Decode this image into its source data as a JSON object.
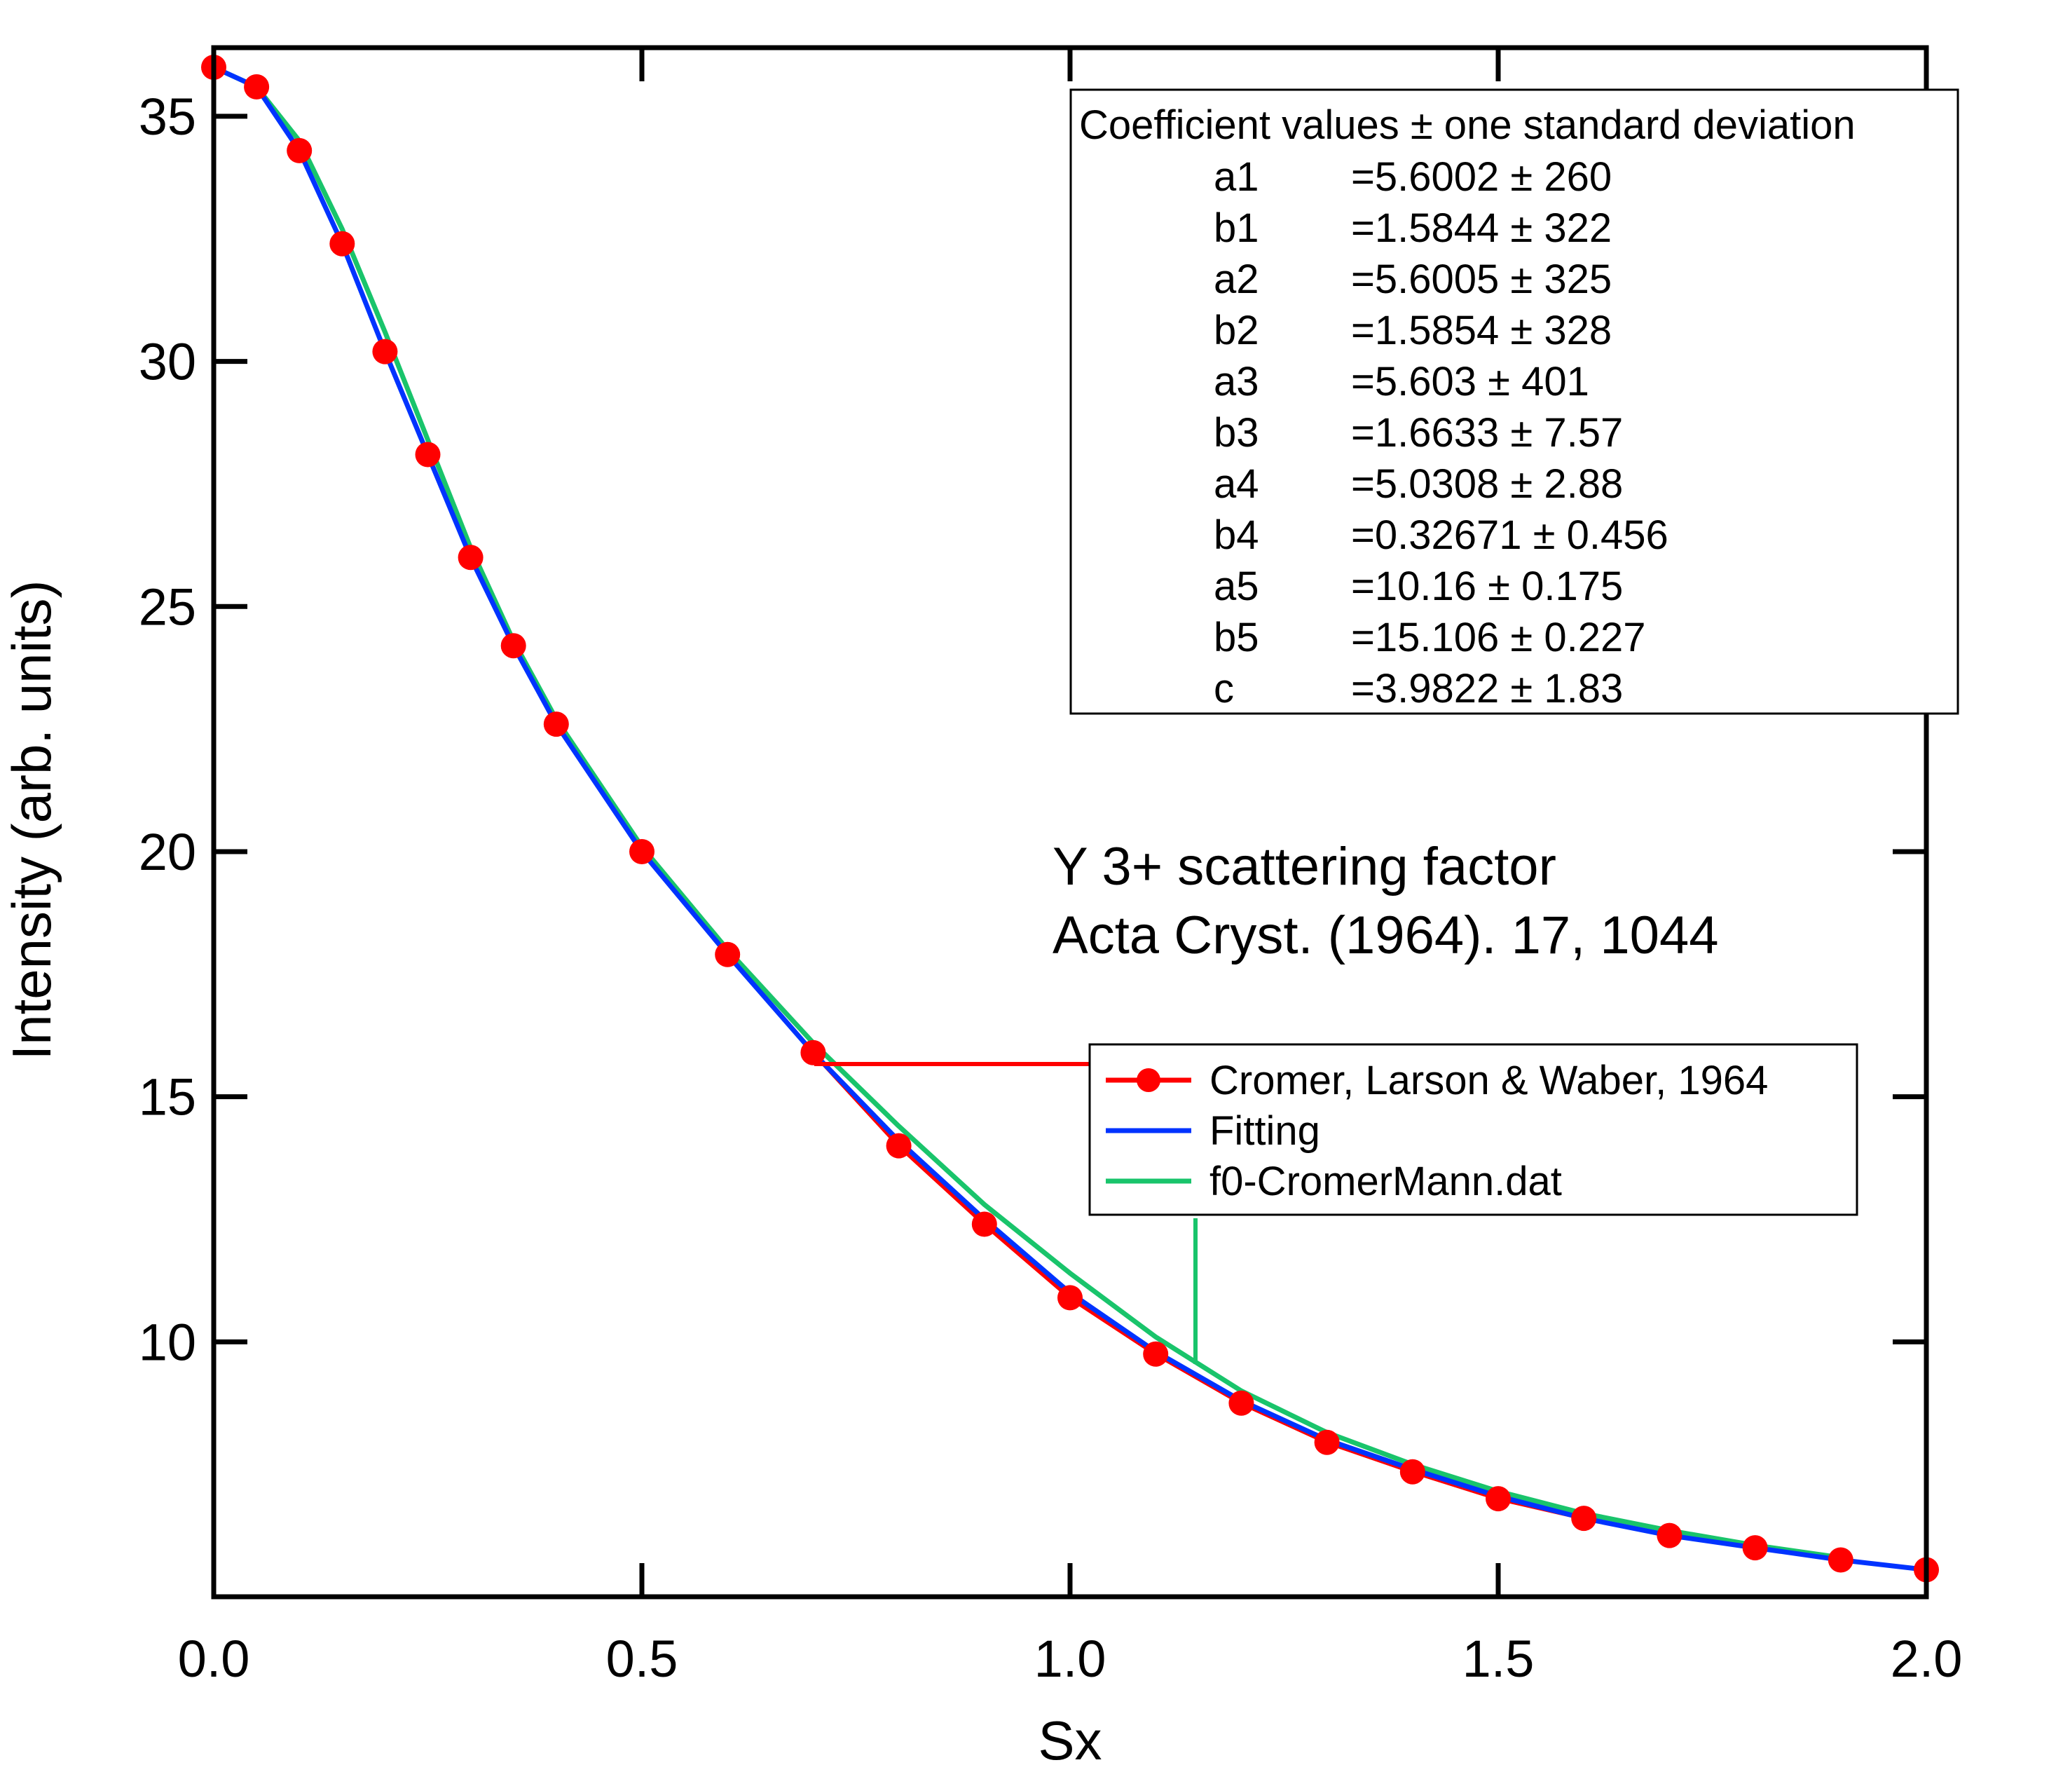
{
  "chart_data": {
    "type": "line",
    "xlabel": "Sx",
    "ylabel": "Intensity (arb. units)",
    "xlim": [
      0.0,
      2.0
    ],
    "ylim": [
      4.8,
      36.4
    ],
    "x_ticks": [
      "0.0",
      "0.5",
      "1.0",
      "1.5",
      "2.0"
    ],
    "y_ticks": [
      "10",
      "15",
      "20",
      "25",
      "30",
      "35"
    ],
    "grid": false,
    "legend_placement": "lower-right",
    "series": [
      {
        "name": "Cromer, Larson & Waber, 1964",
        "color": "#ff0000",
        "marker": "circle",
        "x": [
          0.0,
          0.05,
          0.1,
          0.15,
          0.2,
          0.25,
          0.3,
          0.35,
          0.4,
          0.5,
          0.6,
          0.7,
          0.8,
          0.9,
          1.0,
          1.1,
          1.2,
          1.3,
          1.4,
          1.5,
          1.6,
          1.7,
          1.8,
          1.9,
          2.0
        ],
        "y": [
          36.0,
          35.6,
          34.3,
          32.4,
          30.2,
          28.1,
          26.0,
          24.2,
          22.6,
          20.0,
          17.9,
          15.9,
          14.0,
          12.4,
          10.9,
          9.75,
          8.75,
          7.95,
          7.35,
          6.8,
          6.4,
          6.05,
          5.8,
          5.55,
          5.35
        ]
      },
      {
        "name": "Fitting",
        "color": "#0033ff",
        "x": [
          0.0,
          0.05,
          0.1,
          0.15,
          0.2,
          0.25,
          0.3,
          0.35,
          0.4,
          0.5,
          0.6,
          0.7,
          0.8,
          0.9,
          1.0,
          1.1,
          1.2,
          1.3,
          1.4,
          1.5,
          1.6,
          1.7,
          1.8,
          1.9,
          2.0
        ],
        "y": [
          36.0,
          35.6,
          34.3,
          32.4,
          30.2,
          28.1,
          26.0,
          24.2,
          22.6,
          20.0,
          17.9,
          15.9,
          14.1,
          12.5,
          11.0,
          9.8,
          8.8,
          8.0,
          7.4,
          6.85,
          6.4,
          6.05,
          5.8,
          5.55,
          5.35
        ]
      },
      {
        "name": "f0-CromerMann.dat",
        "color": "#19c46b",
        "x": [
          0.0,
          0.05,
          0.1,
          0.15,
          0.2,
          0.25,
          0.3,
          0.35,
          0.4,
          0.5,
          0.6,
          0.7,
          0.8,
          0.9,
          1.0,
          1.1,
          1.2,
          1.3,
          1.4,
          1.5,
          1.6,
          1.7,
          1.8,
          1.9
        ],
        "y": [
          36.0,
          35.6,
          34.5,
          32.7,
          30.6,
          28.4,
          26.2,
          24.3,
          22.7,
          20.1,
          18.0,
          16.1,
          14.4,
          12.8,
          11.4,
          10.1,
          9.0,
          8.15,
          7.5,
          6.95,
          6.5,
          6.15,
          5.85,
          5.6
        ]
      }
    ],
    "coefficient_box": {
      "title": "Coefficient values ± one standard deviation",
      "rows": [
        {
          "name": "a1",
          "value": "=5.6002 ± 260"
        },
        {
          "name": "b1",
          "value": "=1.5844 ± 322"
        },
        {
          "name": "a2",
          "value": "=5.6005 ± 325"
        },
        {
          "name": "b2",
          "value": "=1.5854 ± 328"
        },
        {
          "name": "a3",
          "value": "=5.603 ± 401"
        },
        {
          "name": "b3",
          "value": "=1.6633 ± 7.57"
        },
        {
          "name": "a4",
          "value": "=5.0308 ± 2.88"
        },
        {
          "name": "b4",
          "value": "=0.32671 ± 0.456"
        },
        {
          "name": "a5",
          "value": "=10.16 ± 0.175"
        },
        {
          "name": "b5",
          "value": "=15.106 ± 0.227"
        },
        {
          "name": "c",
          "value": "=3.9822 ± 1.83"
        }
      ]
    },
    "annotations": [
      "Y 3+ scattering factor",
      "Acta Cryst. (1964). 17, 1044"
    ]
  }
}
